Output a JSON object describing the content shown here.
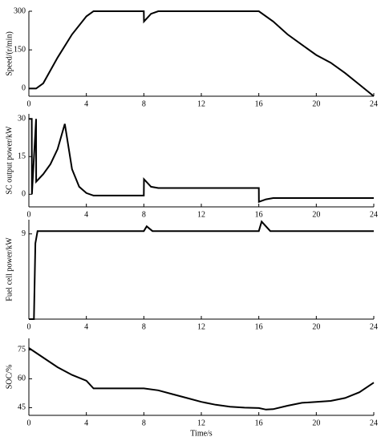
{
  "chart_data": [
    {
      "type": "line",
      "ylabel": "Speed/(r/min)",
      "color": "#000000",
      "x": [
        0,
        0.5,
        1,
        2,
        3,
        4,
        4.5,
        8,
        8.01,
        8.5,
        9,
        16,
        17,
        18,
        19,
        20,
        21,
        22,
        23,
        24
      ],
      "values": [
        0,
        0,
        20,
        120,
        210,
        280,
        300,
        300,
        260,
        290,
        300,
        300,
        260,
        210,
        170,
        130,
        100,
        60,
        15,
        -30
      ],
      "xlim": [
        0,
        24
      ],
      "xticks": [
        0,
        4,
        8,
        12,
        16,
        20,
        24
      ],
      "ylim": [
        -30,
        300
      ],
      "yticks": [
        0,
        150,
        300
      ]
    },
    {
      "type": "line",
      "ylabel": "SC output power/kW",
      "color": "#000000",
      "x": [
        0,
        0.2,
        0.21,
        0.5,
        0.51,
        1,
        1.5,
        2,
        2.5,
        3,
        3.5,
        4,
        4.5,
        5,
        8,
        8.01,
        8.5,
        9,
        16,
        16.01,
        16.5,
        17,
        24
      ],
      "values": [
        30,
        30,
        0,
        30,
        5,
        8,
        12,
        18,
        28,
        10,
        3,
        0.5,
        -0.5,
        -0.5,
        -0.5,
        6,
        3,
        2.5,
        2.5,
        -3,
        -2,
        -1.5,
        -1.5
      ],
      "xlim": [
        0,
        24
      ],
      "xticks": [
        0,
        4,
        8,
        12,
        16,
        20,
        24
      ],
      "ylim": [
        -5,
        32
      ],
      "yticks": [
        0,
        15,
        30
      ]
    },
    {
      "type": "line",
      "ylabel": "Fuel cell power/kW",
      "color": "#000000",
      "x": [
        0,
        0.35,
        0.45,
        0.6,
        8,
        8.2,
        8.6,
        16,
        16.2,
        16.8,
        24
      ],
      "values": [
        0,
        0,
        8,
        9.3,
        9.3,
        9.8,
        9.3,
        9.3,
        10.3,
        9.3,
        9.3
      ],
      "xlim": [
        0,
        24
      ],
      "xticks": [
        0,
        4,
        8,
        12,
        16,
        20,
        24
      ],
      "ylim": [
        0,
        10.5
      ],
      "yticks": [
        9
      ]
    },
    {
      "type": "line",
      "ylabel": "SOC/%",
      "xlabel": "Time/s",
      "color": "#000000",
      "x": [
        0,
        1,
        2,
        3,
        4,
        4.5,
        5,
        8,
        9,
        10,
        11,
        12,
        13,
        14,
        15,
        16,
        16.5,
        17,
        18,
        19,
        20,
        21,
        22,
        23,
        24
      ],
      "values": [
        76,
        71,
        66,
        62,
        59,
        55,
        55,
        55,
        54,
        52,
        50,
        48,
        46.5,
        45.5,
        45,
        44.8,
        44,
        44.2,
        46,
        47.5,
        48,
        48.5,
        50,
        53,
        58
      ],
      "xlim": [
        0,
        24
      ],
      "xticks": [
        0,
        4,
        8,
        12,
        16,
        20,
        24
      ],
      "ylim": [
        41,
        81
      ],
      "yticks": [
        45,
        60,
        75
      ]
    }
  ]
}
